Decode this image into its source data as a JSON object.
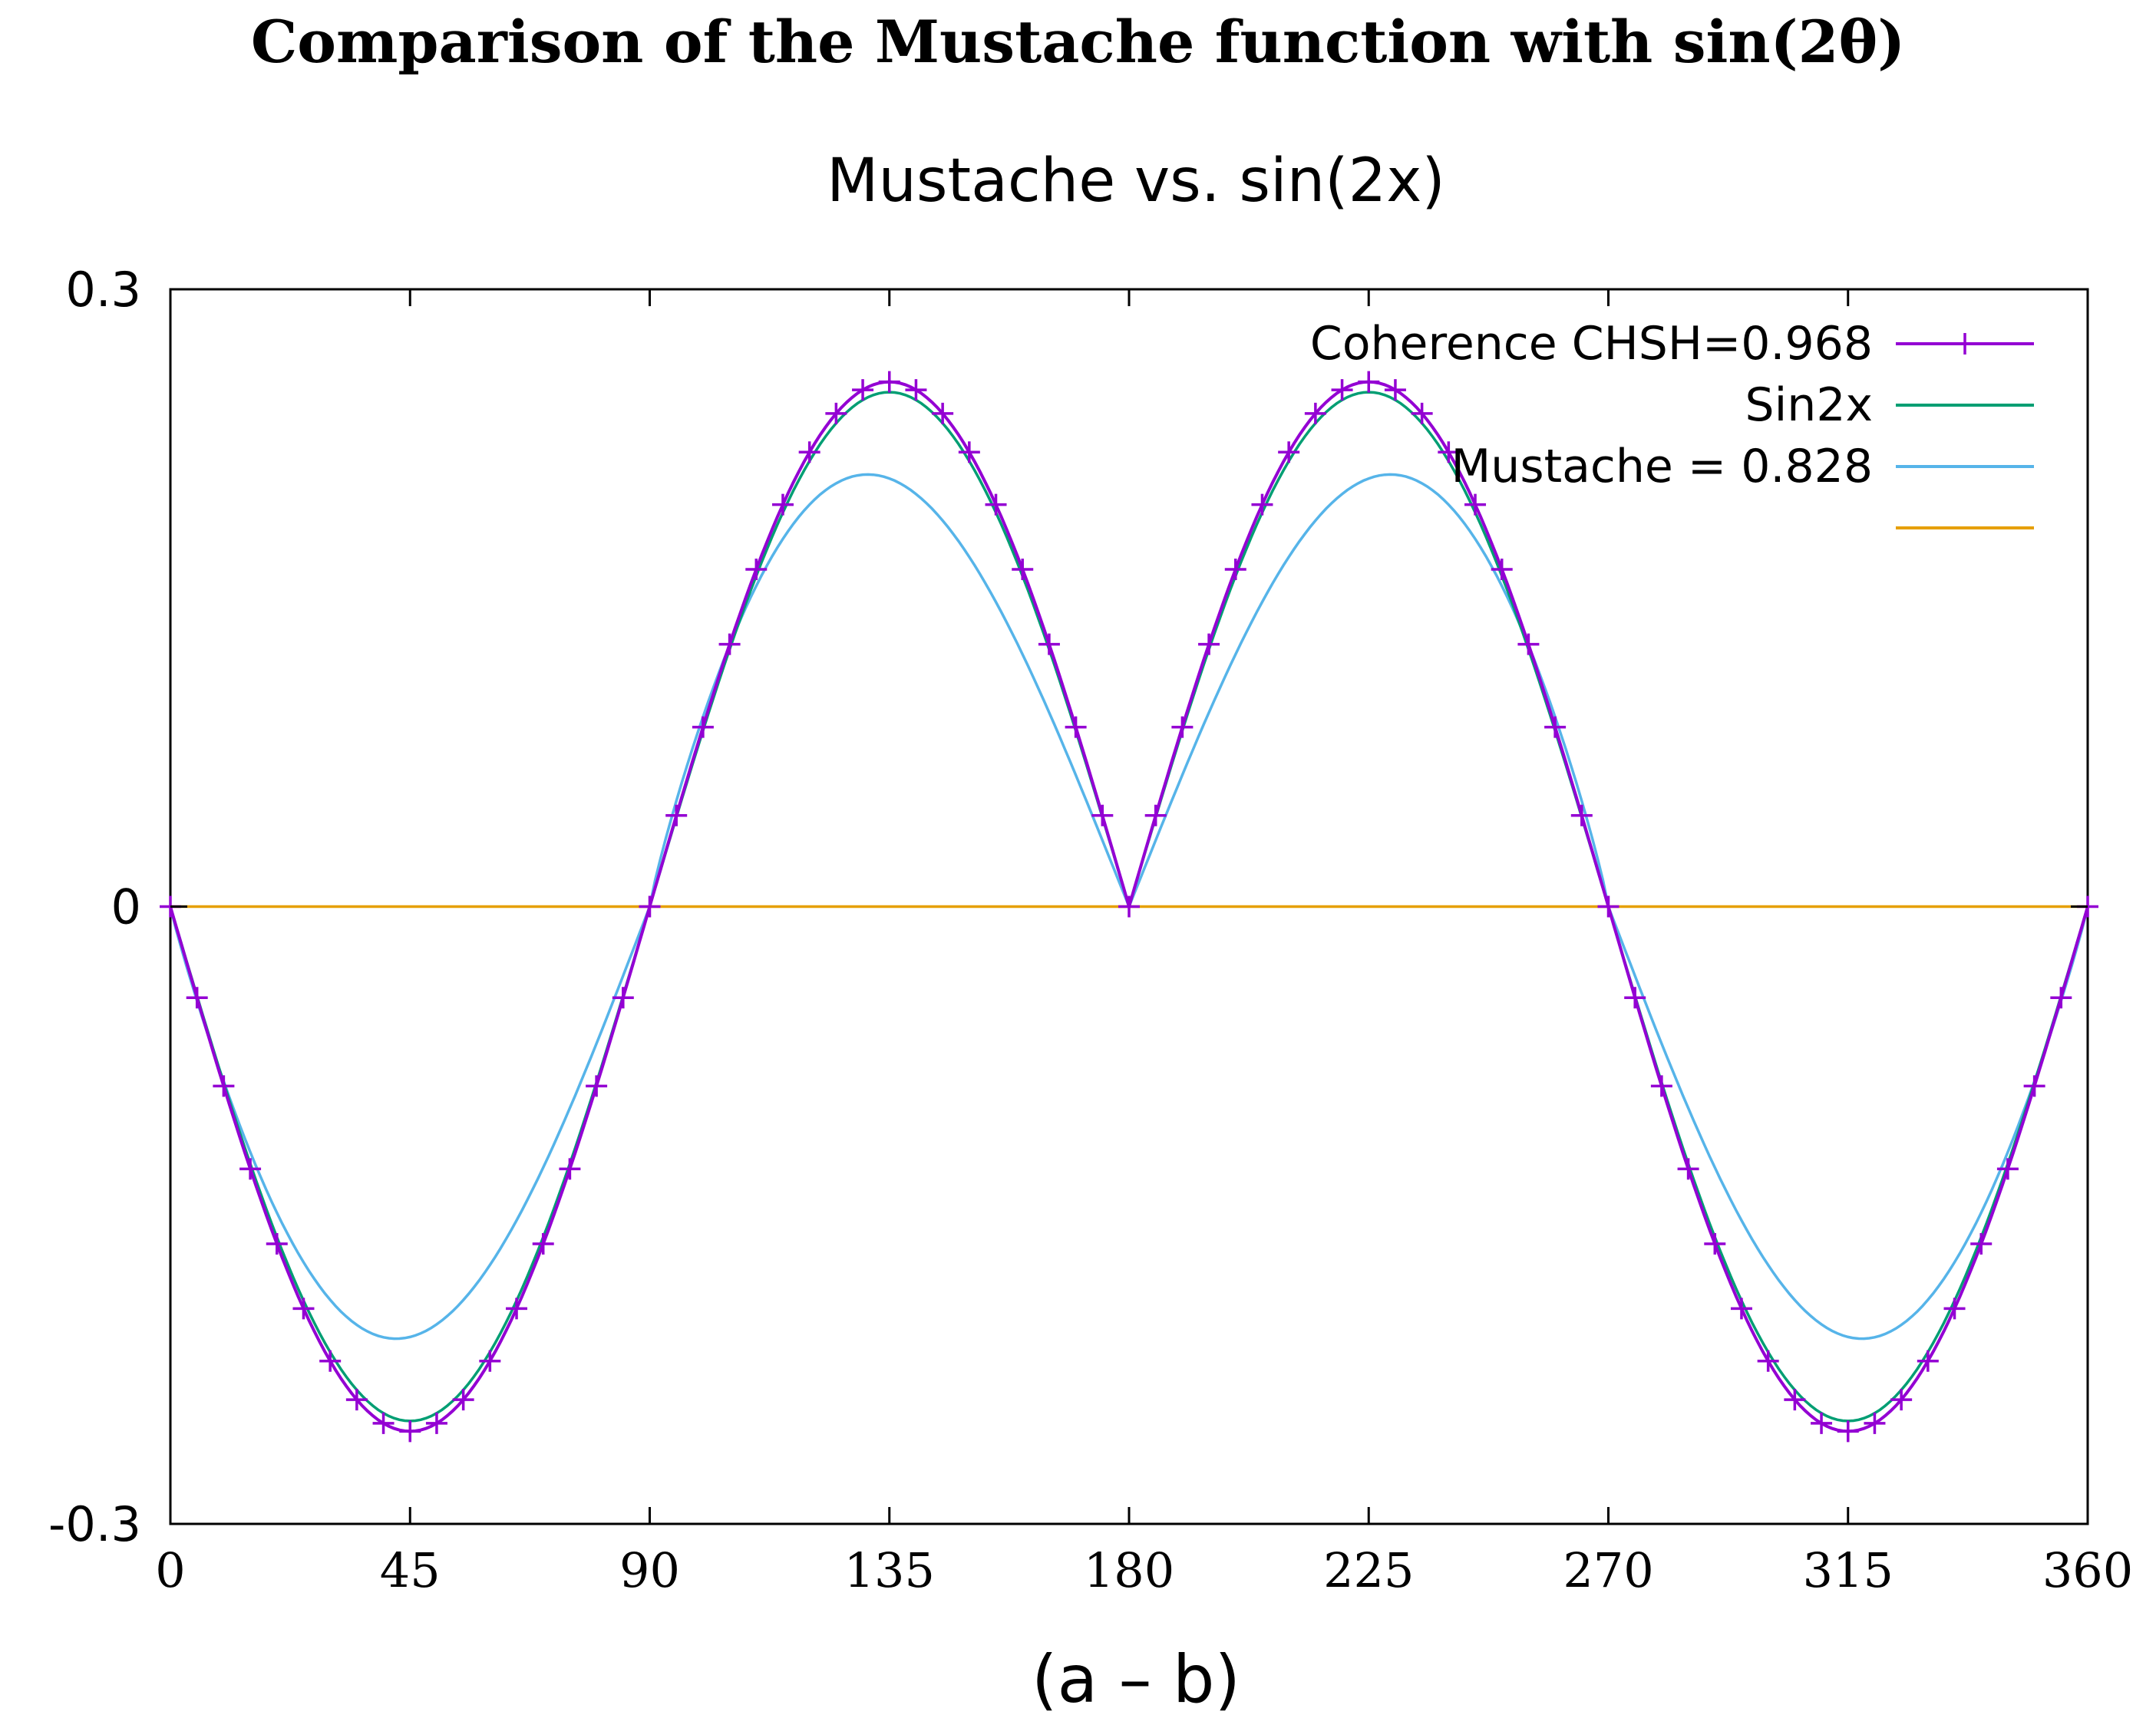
{
  "figure_caption": "Comparison of the Mustache function with sin(2θ)",
  "chart_data": {
    "type": "line",
    "title": "Mustache vs. sin(2x)",
    "xlabel": "(a – b)",
    "ylabel": "",
    "xlim": [
      0,
      360
    ],
    "ylim": [
      -0.3,
      0.3
    ],
    "xticks": [
      0,
      45,
      90,
      135,
      180,
      225,
      270,
      315,
      360
    ],
    "yticks": [
      -0.3,
      0,
      0.3
    ],
    "ytick_labels": [
      "-0.3",
      "0",
      "0.3"
    ],
    "grid": false,
    "legend_position": "top-right",
    "series": [
      {
        "name": "Coherence CHSH=0.968",
        "color": "#9400d3",
        "marker": "plus",
        "function": "coherence_abs_sin2x",
        "amplitude": 0.255,
        "sample_step": 5
      },
      {
        "name": "Sin2x",
        "color": "#009e73",
        "marker": "none",
        "function": "abs_sin2x",
        "amplitude": 0.25
      },
      {
        "name": "Mustache = 0.828",
        "color": "#56b4e9",
        "marker": "none",
        "function": "mustache",
        "amplitude": 0.21
      },
      {
        "name": "",
        "color": "#e69f00",
        "marker": "none",
        "function": "zero",
        "amplitude": 0
      }
    ]
  }
}
